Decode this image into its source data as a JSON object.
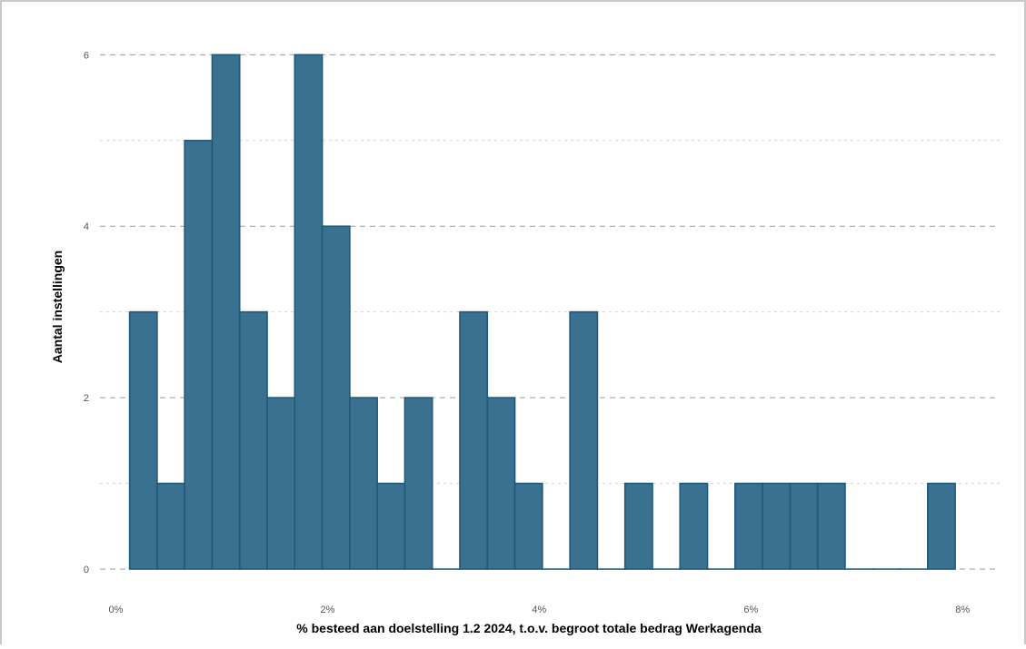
{
  "chart_data": {
    "type": "bar",
    "subtype": "histogram",
    "xlabel": "% besteed aan doelstelling 1.2 2024, t.o.v. begroot totale bedrag Werkagenda",
    "ylabel": "Aantal instellingen",
    "x_ticks": [
      "0%",
      "2%",
      "4%",
      "6%",
      "8%"
    ],
    "y_ticks": [
      "0",
      "2",
      "4",
      "6"
    ],
    "xlim": [
      -0.0015,
      0.0835
    ],
    "ylim": [
      0,
      6.3
    ],
    "bin_width": 0.0026,
    "bin_starts": [
      0.0013,
      0.0039,
      0.0065,
      0.0091,
      0.0117,
      0.0143,
      0.0169,
      0.0195,
      0.0221,
      0.0247,
      0.0273,
      0.0299,
      0.0325,
      0.0351,
      0.0377,
      0.0403,
      0.0429,
      0.0455,
      0.0481,
      0.0507,
      0.0533,
      0.0559,
      0.0585,
      0.0611,
      0.0637,
      0.0663,
      0.0689,
      0.0715,
      0.0741,
      0.0767
    ],
    "counts": [
      3,
      1,
      5,
      6,
      3,
      2,
      6,
      4,
      2,
      1,
      2,
      0,
      3,
      2,
      1,
      0,
      3,
      0,
      1,
      0,
      1,
      0,
      1,
      1,
      1,
      1,
      0,
      0,
      0,
      1
    ],
    "bar_color": "#3a7190",
    "bar_edge_color": "#1f5a78",
    "grid": "horizontal dashed",
    "legend": "none"
  }
}
